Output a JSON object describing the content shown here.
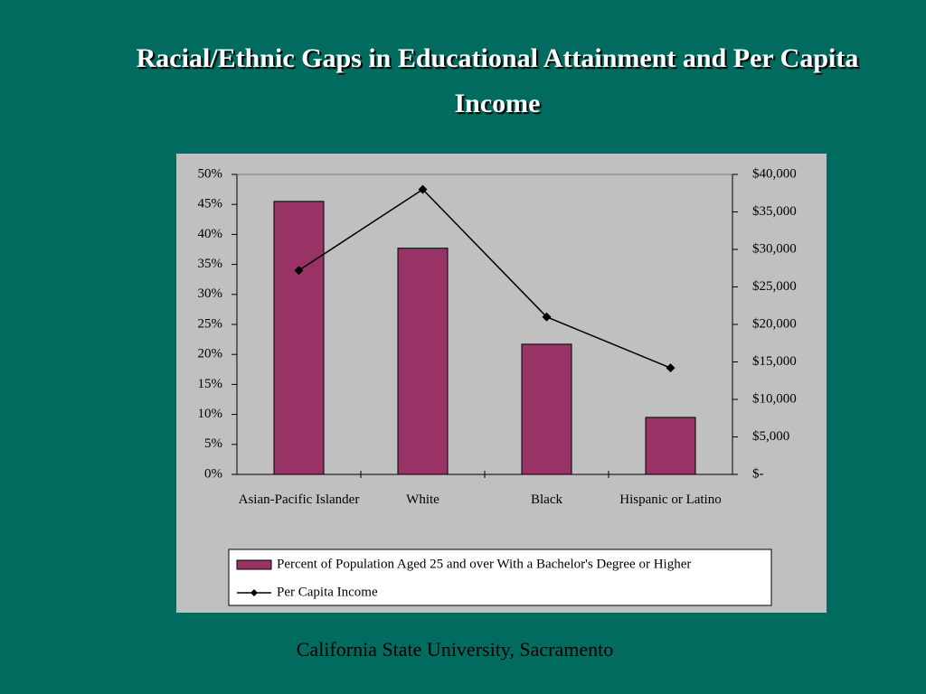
{
  "chart_data": {
    "type": "bar",
    "title": "Racial/Ethnic Gaps in Educational Attainment and Per Capita Income",
    "footer": "California State University, Sacramento",
    "categories": [
      "Asian-Pacific Islander",
      "White",
      "Black",
      "Hispanic or Latino"
    ],
    "series": [
      {
        "name": "Percent of Population Aged 25 and over With a Bachelor's Degree or Higher",
        "type": "bar",
        "color": "#993366",
        "values": [
          45.5,
          37.7,
          21.7,
          9.5
        ]
      },
      {
        "name": "Per Capita Income",
        "type": "line",
        "axis": "y2",
        "color": "#000000",
        "values": [
          27200,
          38000,
          21000,
          14200
        ]
      }
    ],
    "ylim": [
      0,
      50
    ],
    "yticks": [
      {
        "value": 0,
        "label": "0%"
      },
      {
        "value": 5,
        "label": "5%"
      },
      {
        "value": 10,
        "label": "10%"
      },
      {
        "value": 15,
        "label": "15%"
      },
      {
        "value": 20,
        "label": "20%"
      },
      {
        "value": 25,
        "label": "25%"
      },
      {
        "value": 30,
        "label": "30%"
      },
      {
        "value": 35,
        "label": "35%"
      },
      {
        "value": 40,
        "label": "40%"
      },
      {
        "value": 45,
        "label": "45%"
      },
      {
        "value": 50,
        "label": "50%"
      }
    ],
    "y2lim": [
      0,
      40000
    ],
    "y2ticks": [
      {
        "value": 0,
        "label": "$-"
      },
      {
        "value": 5000,
        "label": "$5,000"
      },
      {
        "value": 10000,
        "label": "$10,000"
      },
      {
        "value": 15000,
        "label": "$15,000"
      },
      {
        "value": 20000,
        "label": "$20,000"
      },
      {
        "value": 25000,
        "label": "$25,000"
      },
      {
        "value": 30000,
        "label": "$30,000"
      },
      {
        "value": 35000,
        "label": "$35,000"
      },
      {
        "value": 40000,
        "label": "$40,000"
      }
    ],
    "grid": false,
    "legend": "bottom"
  }
}
